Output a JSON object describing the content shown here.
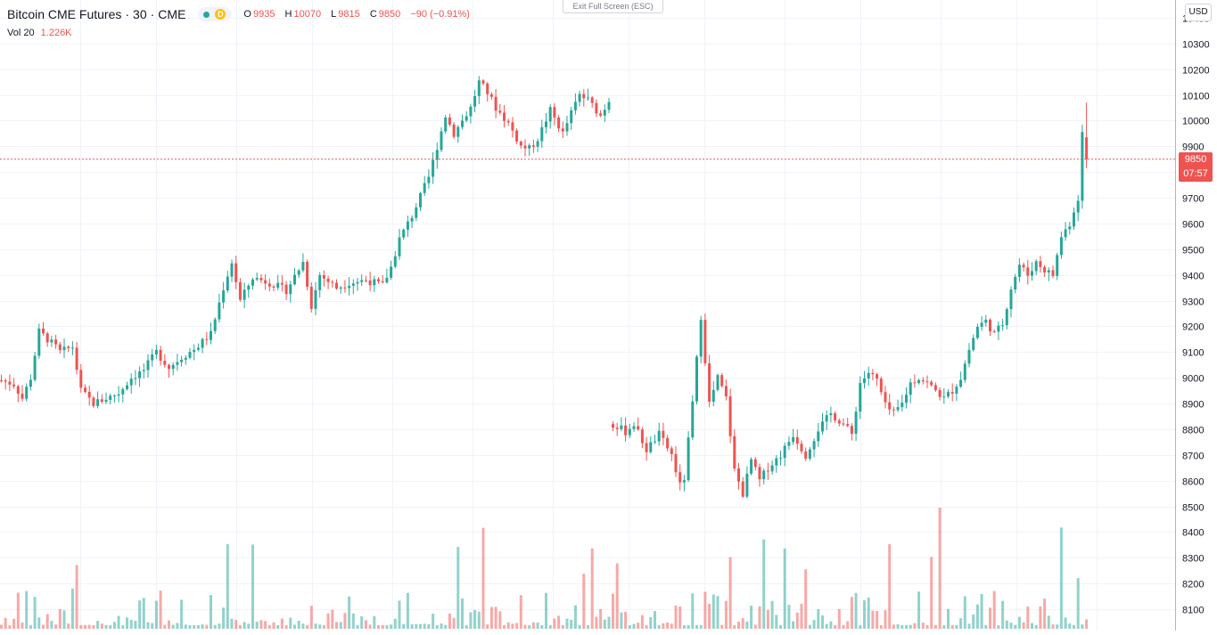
{
  "header": {
    "symbol": "Bitcoin CME Futures",
    "interval": "30",
    "exchange": "CME",
    "delay_badge": "D",
    "ohlc": {
      "o_label": "O",
      "o_value": "9935",
      "h_label": "H",
      "h_value": "10070",
      "l_label": "L",
      "l_value": "9815",
      "c_label": "C",
      "c_value": "9850",
      "change": "−90 (−0.91%)"
    }
  },
  "volume_legend": {
    "label": "Vol 20",
    "value": "1.226K"
  },
  "exit_fullscreen": "Exit Full Screen (ESC)",
  "currency_button": "USD",
  "last_price": {
    "value": "9850",
    "countdown": "07:57"
  },
  "colors": {
    "up": "#26a69a",
    "down": "#ef5350",
    "grid": "#f0f3fa",
    "axis_text": "#131722"
  },
  "chart_data": {
    "type": "candlestick",
    "y_axis": {
      "ticks": [
        8100,
        8200,
        8300,
        8400,
        8500,
        8600,
        8700,
        8800,
        8900,
        9000,
        9100,
        9200,
        9300,
        9400,
        9500,
        9600,
        9700,
        9800,
        9900,
        10000,
        10100,
        10200,
        10300,
        10400
      ],
      "range": [
        8060,
        10440
      ],
      "unit": "USD"
    },
    "grid": true,
    "anchors": [
      [
        0,
        8990
      ],
      [
        3,
        8975
      ],
      [
        5,
        8920
      ],
      [
        7,
        9000
      ],
      [
        9,
        9180
      ],
      [
        11,
        9150
      ],
      [
        13,
        9120
      ],
      [
        14,
        9100
      ],
      [
        17,
        9120
      ],
      [
        19,
        8950
      ],
      [
        22,
        8900
      ],
      [
        25,
        8920
      ],
      [
        28,
        8940
      ],
      [
        31,
        9000
      ],
      [
        34,
        9030
      ],
      [
        37,
        9100
      ],
      [
        40,
        9040
      ],
      [
        43,
        9080
      ],
      [
        46,
        9110
      ],
      [
        50,
        9170
      ],
      [
        53,
        9350
      ],
      [
        55,
        9450
      ],
      [
        57,
        9300
      ],
      [
        60,
        9390
      ],
      [
        64,
        9370
      ],
      [
        68,
        9340
      ],
      [
        72,
        9450
      ],
      [
        74,
        9280
      ],
      [
        76,
        9400
      ],
      [
        80,
        9350
      ],
      [
        83,
        9370
      ],
      [
        87,
        9380
      ],
      [
        91,
        9360
      ],
      [
        93,
        9430
      ],
      [
        95,
        9540
      ],
      [
        98,
        9630
      ],
      [
        102,
        9780
      ],
      [
        104,
        9900
      ],
      [
        106,
        10020
      ],
      [
        108,
        9950
      ],
      [
        112,
        10050
      ],
      [
        114,
        10150
      ],
      [
        116,
        10110
      ],
      [
        118,
        10050
      ],
      [
        121,
        9990
      ],
      [
        124,
        9900
      ],
      [
        126,
        9890
      ],
      [
        128,
        9930
      ],
      [
        131,
        10040
      ],
      [
        134,
        9950
      ],
      [
        136,
        10030
      ],
      [
        138,
        10100
      ],
      [
        140,
        10080
      ],
      [
        143,
        10020
      ],
      [
        145,
        10080
      ]
    ],
    "anchors_right": [
      [
        0,
        8820
      ],
      [
        3,
        8790
      ],
      [
        5,
        8820
      ],
      [
        8,
        8720
      ],
      [
        11,
        8780
      ],
      [
        14,
        8700
      ],
      [
        16,
        8580
      ],
      [
        17,
        8610
      ],
      [
        19,
        8900
      ],
      [
        21,
        9240
      ],
      [
        23,
        8900
      ],
      [
        25,
        9000
      ],
      [
        27,
        8920
      ],
      [
        29,
        8640
      ],
      [
        31,
        8550
      ],
      [
        33,
        8680
      ],
      [
        35,
        8600
      ],
      [
        37,
        8650
      ],
      [
        40,
        8700
      ],
      [
        43,
        8780
      ],
      [
        46,
        8700
      ],
      [
        49,
        8800
      ],
      [
        52,
        8860
      ],
      [
        55,
        8820
      ],
      [
        57,
        8780
      ],
      [
        59,
        8980
      ],
      [
        61,
        9020
      ],
      [
        63,
        8990
      ],
      [
        65,
        8890
      ],
      [
        67,
        8860
      ],
      [
        69,
        8900
      ],
      [
        71,
        8980
      ],
      [
        73,
        9000
      ],
      [
        75,
        8980
      ],
      [
        77,
        8950
      ],
      [
        79,
        8920
      ],
      [
        81,
        8950
      ],
      [
        83,
        9000
      ],
      [
        85,
        9110
      ],
      [
        87,
        9200
      ],
      [
        89,
        9220
      ],
      [
        91,
        9170
      ],
      [
        93,
        9210
      ],
      [
        95,
        9350
      ],
      [
        97,
        9440
      ],
      [
        99,
        9400
      ],
      [
        101,
        9450
      ],
      [
        103,
        9420
      ],
      [
        105,
        9400
      ],
      [
        107,
        9550
      ],
      [
        109,
        9600
      ],
      [
        111,
        9700
      ],
      [
        112,
        9950
      ],
      [
        113,
        9850
      ]
    ],
    "volume": {
      "label": "Vol 20",
      "last": "1.226K"
    }
  }
}
